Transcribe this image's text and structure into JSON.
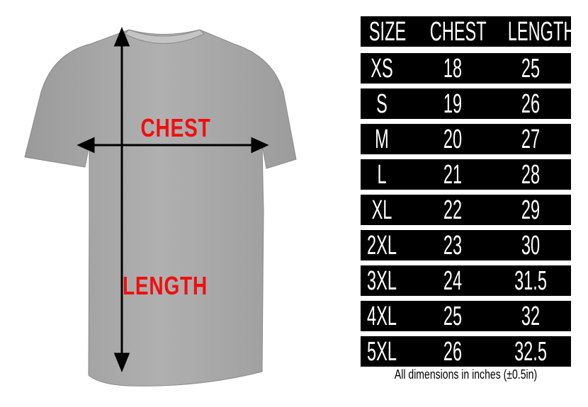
{
  "labels": {
    "chest": "CHEST",
    "length": "LENGTH"
  },
  "table": {
    "headers": [
      "SIZE",
      "CHEST",
      "LENGTH"
    ],
    "rows": [
      [
        "XS",
        "18",
        "25"
      ],
      [
        "S",
        "19",
        "26"
      ],
      [
        "M",
        "20",
        "27"
      ],
      [
        "L",
        "21",
        "28"
      ],
      [
        "XL",
        "22",
        "29"
      ],
      [
        "2XL",
        "23",
        "30"
      ],
      [
        "3XL",
        "24",
        "31.5"
      ],
      [
        "4XL",
        "25",
        "32"
      ],
      [
        "5XL",
        "26",
        "32.5"
      ]
    ]
  },
  "note": "All dimensions in inches (±0.5in)",
  "colors": {
    "label": "#f20d0d",
    "shirt": "#a9a9a9",
    "table_bg": "#000000"
  }
}
